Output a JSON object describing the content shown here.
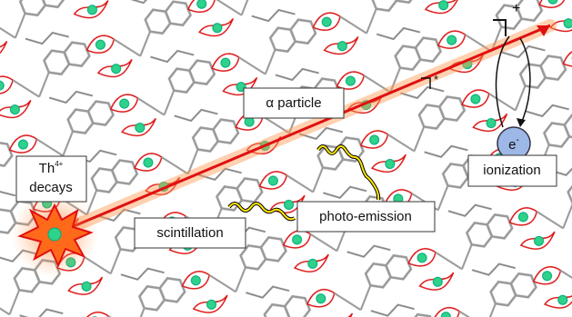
{
  "labels": {
    "alpha": "α particle",
    "decay_element": "Th",
    "decay_charge": "4+",
    "decay_text": "decays",
    "scintillation": "scintillation",
    "photo_emission": "photo-emission",
    "ionization": "ionization",
    "electron": "e",
    "electron_charge": "-",
    "excited_mark": "*",
    "ion_mark": "+"
  }
}
